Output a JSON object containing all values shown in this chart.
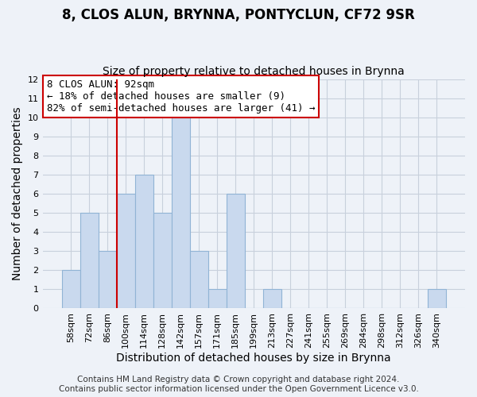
{
  "title": "8, CLOS ALUN, BRYNNA, PONTYCLUN, CF72 9SR",
  "subtitle": "Size of property relative to detached houses in Brynna",
  "xlabel": "Distribution of detached houses by size in Brynna",
  "ylabel": "Number of detached properties",
  "bar_color": "#c9d9ee",
  "bar_edge_color": "#91b4d5",
  "categories": [
    "58sqm",
    "72sqm",
    "86sqm",
    "100sqm",
    "114sqm",
    "128sqm",
    "142sqm",
    "157sqm",
    "171sqm",
    "185sqm",
    "199sqm",
    "213sqm",
    "227sqm",
    "241sqm",
    "255sqm",
    "269sqm",
    "284sqm",
    "298sqm",
    "312sqm",
    "326sqm",
    "340sqm"
  ],
  "values": [
    2,
    5,
    3,
    6,
    7,
    5,
    10,
    3,
    1,
    6,
    0,
    1,
    0,
    0,
    0,
    0,
    0,
    0,
    0,
    0,
    1
  ],
  "ylim": [
    0,
    12
  ],
  "yticks": [
    0,
    1,
    2,
    3,
    4,
    5,
    6,
    7,
    8,
    9,
    10,
    11,
    12
  ],
  "vline_x_index": 2.5,
  "vline_color": "#cc0000",
  "annotation_line1": "8 CLOS ALUN: 92sqm",
  "annotation_line2": "← 18% of detached houses are smaller (9)",
  "annotation_line3": "82% of semi-detached houses are larger (41) →",
  "annotation_box_color": "#ffffff",
  "annotation_box_edge_color": "#cc0000",
  "footer_line1": "Contains HM Land Registry data © Crown copyright and database right 2024.",
  "footer_line2": "Contains public sector information licensed under the Open Government Licence v3.0.",
  "background_color": "#eef2f8",
  "grid_color": "#c8d0dc",
  "title_fontsize": 12,
  "subtitle_fontsize": 10,
  "axis_label_fontsize": 10,
  "tick_fontsize": 8,
  "annotation_fontsize": 9,
  "footer_fontsize": 7.5
}
